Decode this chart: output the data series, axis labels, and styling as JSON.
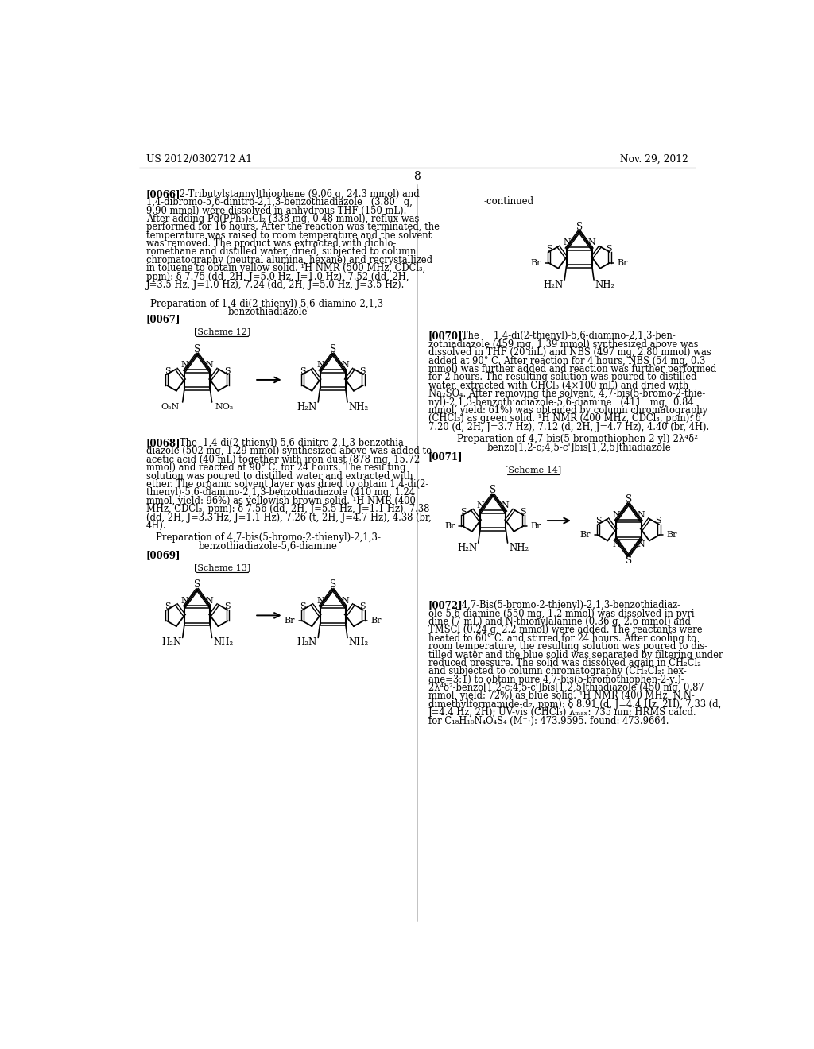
{
  "background_color": "#ffffff",
  "header_left": "US 2012/0302712 A1",
  "header_right": "Nov. 29, 2012",
  "page_number": "8"
}
